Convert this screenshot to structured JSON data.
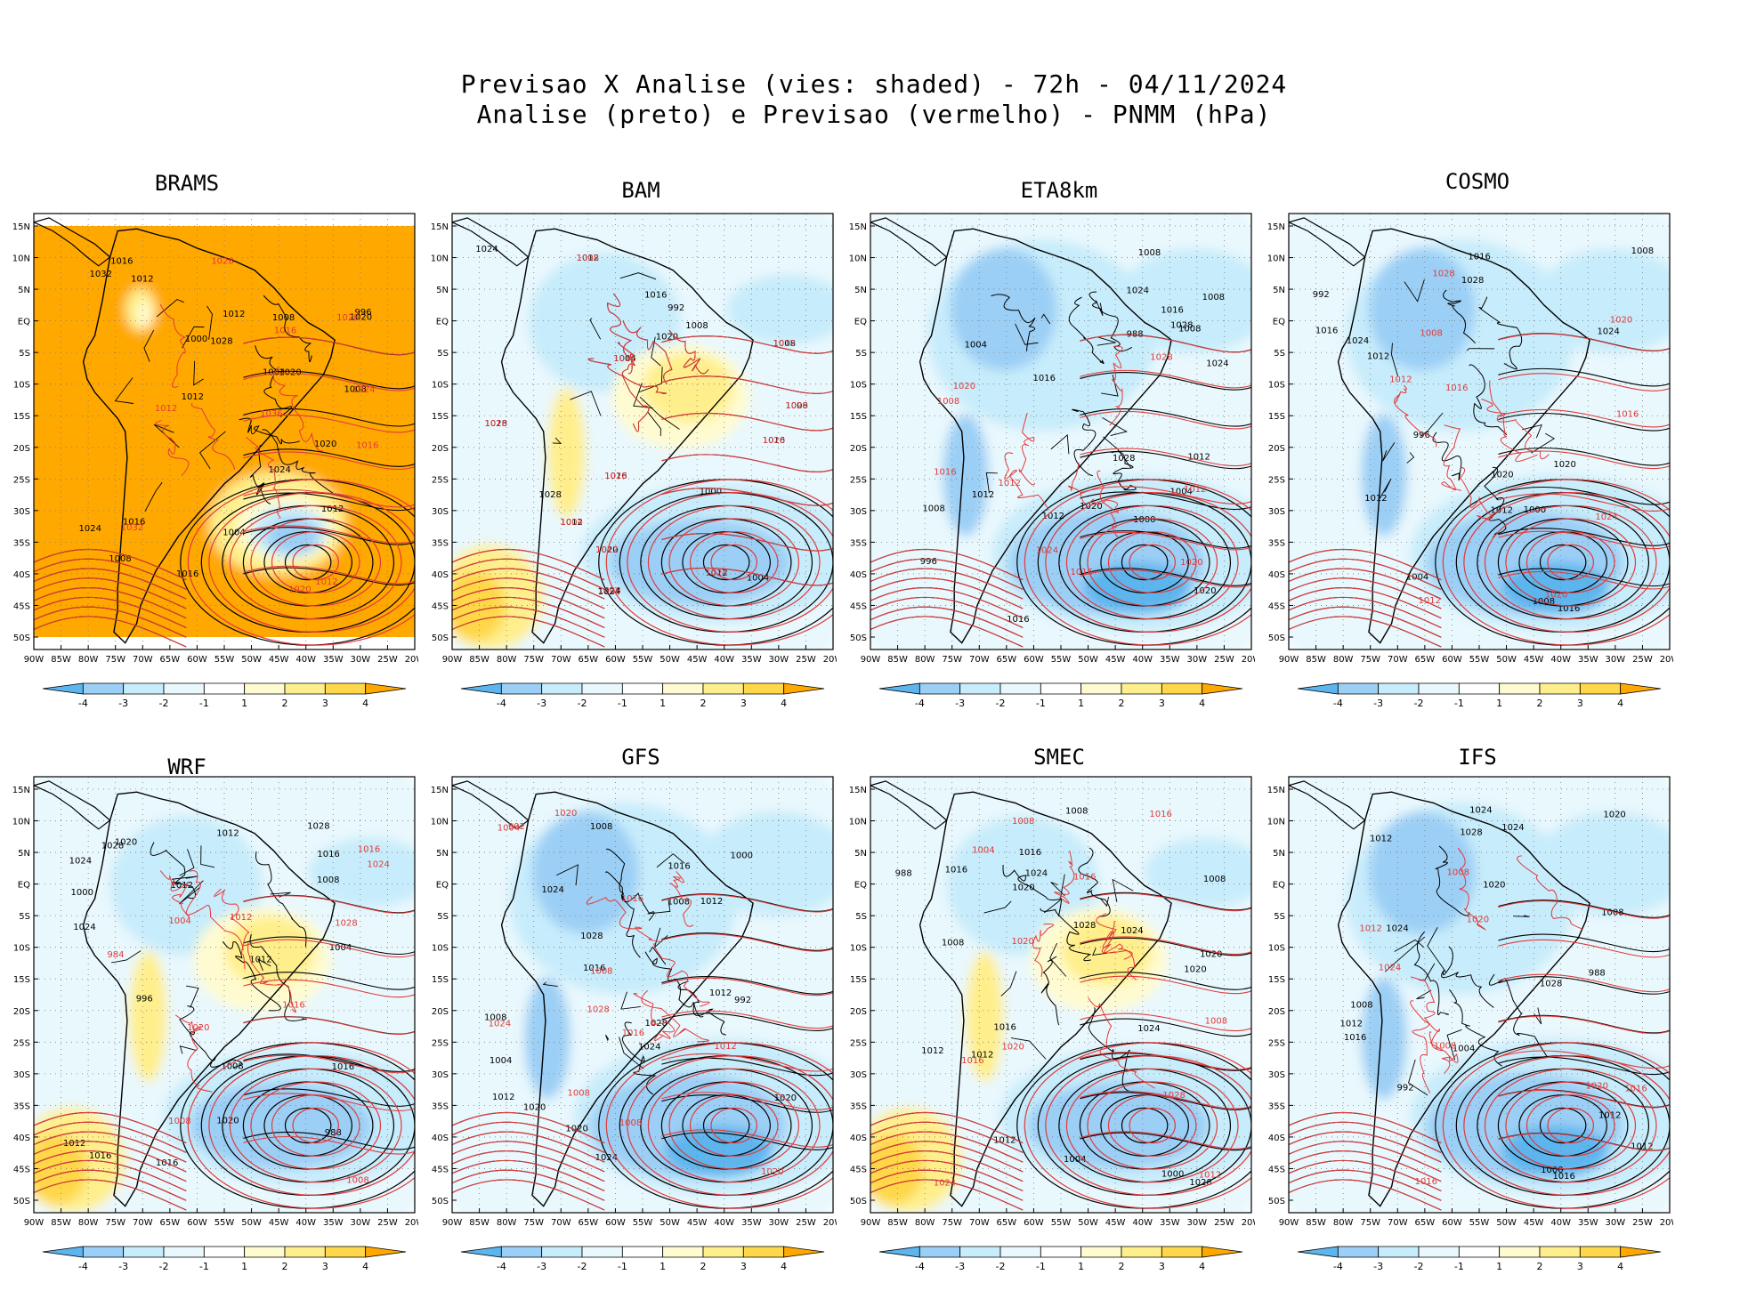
{
  "header": {
    "line1": "Previsao X Analise (vies: shaded) - 72h - 04/11/2024",
    "line2": "Analise (preto) e Previsao (vermelho) - PNMM (hPa)"
  },
  "colors": {
    "neg4": "#5db5ee",
    "neg3": "#9ccff5",
    "neg2": "#c7ecfb",
    "neg1": "#e9f8fd",
    "neutral": "#ffffff",
    "pos1": "#fffbd0",
    "pos2": "#ffef8c",
    "pos3": "#ffd74a",
    "pos4": "#ffa800",
    "analysis_line": "#000000",
    "forecast_line": "#e23a3a",
    "land_line": "#000000"
  },
  "axes": {
    "lat_labels": [
      "15N",
      "10N",
      "5N",
      "EQ",
      "5S",
      "10S",
      "15S",
      "20S",
      "25S",
      "30S",
      "35S",
      "40S",
      "45S",
      "50S"
    ],
    "lon_labels": [
      "90W",
      "85W",
      "80W",
      "75W",
      "70W",
      "65W",
      "60W",
      "55W",
      "50W",
      "45W",
      "40W",
      "35W",
      "30W",
      "25W",
      "20W"
    ]
  },
  "colorbar": {
    "labels": [
      "-4",
      "-3",
      "-2",
      "-1",
      "1",
      "2",
      "3",
      "4"
    ]
  },
  "panels": [
    {
      "name": "BRAMS",
      "bias": "positive",
      "isobars_black": [
        "1012",
        "1008",
        "1004",
        "1008",
        "1012",
        "1016",
        "1012",
        "1020",
        "1016",
        "1020",
        "1024",
        "1028",
        "1032",
        "1008",
        "1004",
        "1000",
        "996",
        "1024",
        "1020",
        "1016",
        "1012"
      ],
      "isobars_red": [
        "1012",
        "1020",
        "1016",
        "1028",
        "1036",
        "1024",
        "1032",
        "1028",
        "1016",
        "1012"
      ]
    },
    {
      "name": "BAM",
      "bias": "mixed",
      "isobars_black": [
        "1012",
        "1008",
        "1004",
        "1008",
        "1012",
        "1016",
        "1020",
        "1024",
        "1028",
        "1016",
        "1012",
        "1008",
        "1004",
        "1000",
        "992",
        "1020",
        "1024",
        "1028",
        "1024",
        "1016"
      ],
      "isobars_red": [
        "1008",
        "1012",
        "1016",
        "1020",
        "1024",
        "1028",
        "1012",
        "1008",
        "1016",
        "1020",
        "1004"
      ]
    },
    {
      "name": "ETA8km",
      "bias": "negative",
      "isobars_black": [
        "1012",
        "1008",
        "1004",
        "1008",
        "1012",
        "1016",
        "1020",
        "1024",
        "1028",
        "1008",
        "1012",
        "1016",
        "1020",
        "1024",
        "1028",
        "988",
        "996",
        "1000",
        "1004",
        "1008",
        "1016"
      ],
      "isobars_red": [
        "1012",
        "1016",
        "1020",
        "1024",
        "1028",
        "1020",
        "1016",
        "1012",
        "1008"
      ]
    },
    {
      "name": "COSMO",
      "bias": "negative",
      "isobars_black": [
        "1012",
        "1008",
        "1016",
        "1020",
        "1024",
        "1028",
        "1016",
        "1012",
        "1008",
        "1004",
        "1000",
        "992",
        "996",
        "1020",
        "1016",
        "1024",
        "1012"
      ],
      "isobars_red": [
        "1008",
        "1012",
        "1016",
        "1020",
        "1024",
        "1028",
        "1020",
        "1016",
        "1012"
      ]
    },
    {
      "name": "WRF",
      "bias": "mixed",
      "isobars_black": [
        "1016",
        "1012",
        "1008",
        "1012",
        "1016",
        "1020",
        "1024",
        "1028",
        "1008",
        "1012",
        "1016",
        "1020",
        "1024",
        "1028",
        "1004",
        "1000",
        "996",
        "988",
        "1016",
        "1012"
      ],
      "isobars_red": [
        "1008",
        "1012",
        "1016",
        "1020",
        "1024",
        "1028",
        "1008",
        "1016",
        "1004",
        "984"
      ]
    },
    {
      "name": "GFS",
      "bias": "negative",
      "isobars_black": [
        "1008",
        "1012",
        "1016",
        "1020",
        "1024",
        "1028",
        "1008",
        "1012",
        "1016",
        "1012",
        "1004",
        "1008",
        "1000",
        "992",
        "1020",
        "1024",
        "1028",
        "1024",
        "1020"
      ],
      "isobars_red": [
        "1008",
        "1012",
        "1016",
        "1020",
        "1024",
        "1028",
        "1004",
        "1008",
        "1016",
        "1020",
        "1008",
        "992"
      ]
    },
    {
      "name": "SMEC",
      "bias": "mixed",
      "isobars_black": [
        "1008",
        "1012",
        "1016",
        "1020",
        "1024",
        "1028",
        "1008",
        "1012",
        "1016",
        "1020",
        "1012",
        "1008",
        "1004",
        "1000",
        "988",
        "1020",
        "1024",
        "1028",
        "1024",
        "1016"
      ],
      "isobars_red": [
        "1008",
        "1012",
        "1016",
        "1020",
        "1024",
        "1028",
        "1004",
        "1008",
        "1016",
        "1020",
        "1016"
      ]
    },
    {
      "name": "IFS",
      "bias": "negative",
      "isobars_black": [
        "1012",
        "1008",
        "1012",
        "1016",
        "1020",
        "1024",
        "1028",
        "1008",
        "1012",
        "1016",
        "1004",
        "1000",
        "992",
        "988",
        "1012",
        "1020",
        "1024",
        "1028",
        "1024"
      ],
      "isobars_red": [
        "1008",
        "1012",
        "1016",
        "1020",
        "1024",
        "1016",
        "1008",
        "1020"
      ]
    }
  ]
}
